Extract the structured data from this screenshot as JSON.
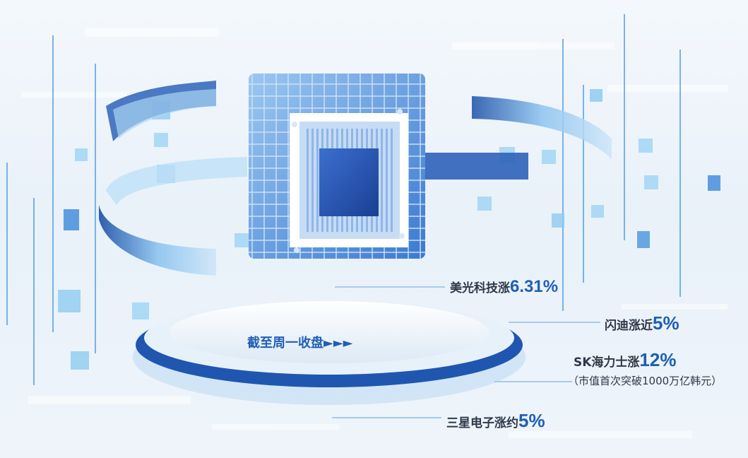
{
  "platform": {
    "caption": "截至周一收盘",
    "arrows": "►►►"
  },
  "labels": [
    {
      "name": "美光科技涨",
      "value": "6.31%"
    },
    {
      "name": "闪迪涨近",
      "value": "5%"
    },
    {
      "name": "SK海力士涨",
      "value": "12%",
      "note": "（市值首次突破1000万亿韩元）"
    },
    {
      "name": "三星电子涨约",
      "value": "5%"
    }
  ],
  "colors": {
    "accent": "#1f5fb4",
    "chip": "#4a86d8",
    "text": "#2f3848"
  }
}
